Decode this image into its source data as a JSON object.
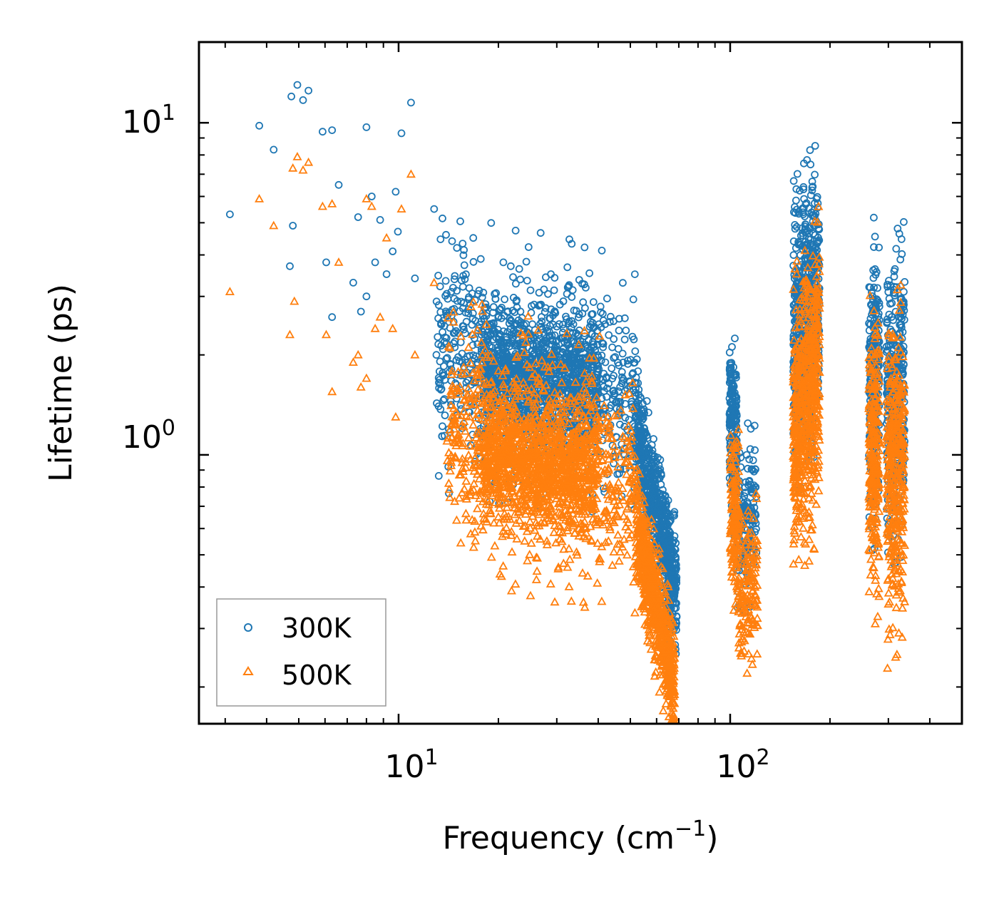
{
  "chart_data": {
    "type": "scatter",
    "xscale": "log",
    "yscale": "log",
    "xlim": [
      2.5,
      500
    ],
    "ylim": [
      0.155,
      17.5
    ],
    "xlabel": "Frequency (cm",
    "xlabel_sup": "−1",
    "xlabel_end": ")",
    "ylabel": "Lifetime (ps)",
    "x_ticks": [
      {
        "value": 10,
        "base": "10",
        "exp": "1"
      },
      {
        "value": 100,
        "base": "10",
        "exp": "2"
      }
    ],
    "y_ticks": [
      {
        "value": 1,
        "base": "10",
        "exp": "0"
      },
      {
        "value": 10,
        "base": "10",
        "exp": "1"
      }
    ],
    "legend_position": "lower-left",
    "series": [
      {
        "name": "300K",
        "marker": "circle",
        "color": "#1f77b4"
      },
      {
        "name": "500K",
        "marker": "triangle",
        "color": "#ff7f0e"
      }
    ],
    "scatter_points": {
      "300K": [
        [
          3.1,
          5.3
        ],
        [
          3.8,
          9.8
        ],
        [
          4.2,
          8.3
        ],
        [
          4.7,
          3.7
        ],
        [
          4.8,
          4.9
        ],
        [
          4.75,
          12.0
        ],
        [
          4.95,
          13.0
        ],
        [
          5.15,
          11.7
        ],
        [
          5.35,
          12.5
        ],
        [
          5.9,
          9.4
        ],
        [
          6.3,
          9.5
        ],
        [
          6.3,
          2.6
        ],
        [
          6.6,
          6.5
        ],
        [
          6.05,
          3.8
        ],
        [
          7.3,
          3.3
        ],
        [
          7.55,
          5.2
        ],
        [
          7.7,
          2.7
        ],
        [
          8.0,
          3.0
        ],
        [
          8.0,
          9.7
        ],
        [
          8.3,
          6.0
        ],
        [
          8.5,
          3.8
        ],
        [
          8.8,
          5.1
        ],
        [
          9.2,
          3.5
        ],
        [
          9.6,
          4.1
        ],
        [
          9.8,
          6.2
        ],
        [
          9.95,
          4.7
        ],
        [
          10.2,
          9.3
        ],
        [
          10.9,
          11.5
        ],
        [
          11.2,
          3.4
        ],
        [
          12.8,
          5.5
        ],
        [
          13.9,
          4.6
        ],
        [
          14.5,
          4.4
        ],
        [
          15.0,
          4.2
        ],
        [
          16.8,
          4.5
        ],
        [
          20.7,
          3.8
        ],
        [
          21.8,
          3.7
        ],
        [
          28.8,
          3.5
        ],
        [
          34.0,
          2.0
        ],
        [
          38.0,
          1.8
        ]
      ],
      "500K": [
        [
          3.1,
          3.1
        ],
        [
          3.8,
          5.9
        ],
        [
          4.2,
          4.9
        ],
        [
          4.7,
          2.3
        ],
        [
          4.8,
          7.3
        ],
        [
          4.85,
          2.9
        ],
        [
          4.95,
          7.9
        ],
        [
          5.15,
          7.2
        ],
        [
          5.35,
          7.6
        ],
        [
          5.9,
          5.6
        ],
        [
          6.05,
          2.3
        ],
        [
          6.3,
          5.7
        ],
        [
          6.3,
          1.55
        ],
        [
          6.6,
          3.8
        ],
        [
          7.3,
          1.9
        ],
        [
          7.55,
          2.0
        ],
        [
          7.7,
          1.6
        ],
        [
          8.0,
          1.7
        ],
        [
          8.0,
          5.9
        ],
        [
          8.3,
          5.6
        ],
        [
          8.5,
          2.4
        ],
        [
          8.8,
          2.6
        ],
        [
          9.2,
          4.5
        ],
        [
          9.6,
          2.4
        ],
        [
          9.8,
          1.3
        ],
        [
          10.2,
          5.5
        ],
        [
          10.9,
          7.0
        ],
        [
          11.2,
          2.0
        ],
        [
          12.8,
          3.3
        ],
        [
          14.0,
          1.1
        ],
        [
          16.0,
          0.75
        ],
        [
          20.0,
          0.65
        ],
        [
          24.0,
          0.55
        ],
        [
          28.0,
          0.55
        ],
        [
          35.0,
          0.6
        ]
      ]
    },
    "scatter_bands": {
      "300K": [
        {
          "x": [
            13,
            52
          ],
          "ymid": [
            2.05,
            1.55
          ],
          "spread": 0.42,
          "count": 900
        },
        {
          "x": [
            18,
            40
          ],
          "ymid": [
            1.8,
            1.6
          ],
          "spread": 0.22,
          "count": 900
        },
        {
          "x": [
            52,
            69
          ],
          "ymid": [
            1.2,
            0.38
          ],
          "spread": 0.22,
          "count": 700
        },
        {
          "x": [
            99.5,
            105
          ],
          "ymid": [
            1.35,
            1.0
          ],
          "spread": 0.32,
          "count": 220
        },
        {
          "x": [
            105,
            120
          ],
          "ymid": [
            0.6,
            0.7
          ],
          "spread": 0.28,
          "count": 150
        },
        {
          "x": [
            155,
            186
          ],
          "ymid": [
            2.2,
            3.1
          ],
          "spread": 0.48,
          "count": 650
        },
        {
          "x": [
            262,
            282
          ],
          "ymid": [
            1.6,
            1.7
          ],
          "spread": 0.5,
          "count": 260
        },
        {
          "x": [
            296,
            336
          ],
          "ymid": [
            1.4,
            1.6
          ],
          "spread": 0.5,
          "count": 380
        }
      ],
      "500K": [
        {
          "x": [
            14,
            52
          ],
          "ymid": [
            1.15,
            0.82
          ],
          "spread": 0.42,
          "count": 900
        },
        {
          "x": [
            18,
            40
          ],
          "ymid": [
            1.0,
            0.9
          ],
          "spread": 0.22,
          "count": 900
        },
        {
          "x": [
            52,
            68
          ],
          "ymid": [
            0.62,
            0.2
          ],
          "spread": 0.22,
          "count": 700
        },
        {
          "x": [
            100,
            106
          ],
          "ymid": [
            0.75,
            0.6
          ],
          "spread": 0.3,
          "count": 160
        },
        {
          "x": [
            106,
            121
          ],
          "ymid": [
            0.38,
            0.42
          ],
          "spread": 0.3,
          "count": 150
        },
        {
          "x": [
            155,
            186
          ],
          "ymid": [
            1.15,
            1.8
          ],
          "spread": 0.5,
          "count": 650
        },
        {
          "x": [
            262,
            282
          ],
          "ymid": [
            0.95,
            1.0
          ],
          "spread": 0.5,
          "count": 260
        },
        {
          "x": [
            296,
            336
          ],
          "ymid": [
            0.8,
            0.95
          ],
          "spread": 0.55,
          "count": 380
        }
      ]
    }
  }
}
